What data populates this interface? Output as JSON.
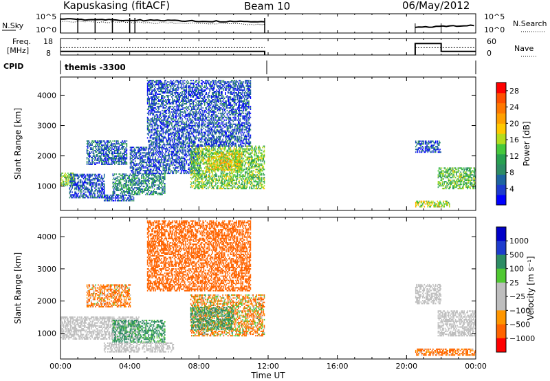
{
  "header": {
    "station": "Kapuskasing (fitACF)",
    "beam": "Beam 10",
    "date": "06/May/2012"
  },
  "panels": {
    "nsky": {
      "left_label": "N.Sky",
      "left_ticks": [
        "10^5",
        "10^0"
      ],
      "right_label": "N.Search",
      "right_ticks": [
        "10^5",
        "10^0"
      ]
    },
    "freq": {
      "left_label_1": "Freq.",
      "left_label_2": "[MHz]",
      "left_ticks": [
        "18",
        "8"
      ],
      "right_label": "Nave",
      "right_ticks": [
        "60",
        "0"
      ]
    },
    "cpid": {
      "label": "CPID",
      "program": "themis -3300"
    }
  },
  "colors": {
    "power_scale": [
      "#0000ff",
      "#1e3ccd",
      "#1e64a0",
      "#2d8c64",
      "#28a050",
      "#46c83c",
      "#b4dc1e",
      "#ffc800",
      "#ffa000",
      "#ff7800",
      "#ff5000",
      "#ff0000"
    ],
    "velocity_scale": [
      "#ff0000",
      "#ff6400",
      "#ff9600",
      "#bebebe",
      "#bebebe",
      "#50c832",
      "#2d8c64",
      "#1e3ccd",
      "#0000c8"
    ],
    "ground_scatter": "#bebebe"
  },
  "chart_data": [
    {
      "type": "heatmap",
      "name": "power",
      "ylabel": "Slant Range [km]",
      "yticks": [
        "1000",
        "2000",
        "3000",
        "4000"
      ],
      "ylim": [
        200,
        4600
      ],
      "xlim": [
        0,
        24
      ],
      "colorbar_label": "Power [dB]",
      "colorbar_ticks": [
        "4",
        "8",
        "12",
        "16",
        "20",
        "24",
        "28"
      ],
      "colorbar_range": [
        0,
        30
      ],
      "regions": [
        {
          "t": [
            0.0,
            0.8
          ],
          "r": [
            1000,
            1450
          ],
          "v": 14
        },
        {
          "t": [
            0.5,
            2.5
          ],
          "r": [
            600,
            1400
          ],
          "v": 5
        },
        {
          "t": [
            1.5,
            3.8
          ],
          "r": [
            1700,
            2500
          ],
          "v": 6
        },
        {
          "t": [
            2.5,
            4.2
          ],
          "r": [
            500,
            700
          ],
          "v": 5
        },
        {
          "t": [
            3.0,
            6.0
          ],
          "r": [
            700,
            1400
          ],
          "v": 9
        },
        {
          "t": [
            4.0,
            8.0
          ],
          "r": [
            1400,
            2300
          ],
          "v": 5
        },
        {
          "t": [
            7.5,
            11.8
          ],
          "r": [
            900,
            2300
          ],
          "v": 14
        },
        {
          "t": [
            8.5,
            10.5
          ],
          "r": [
            1500,
            2100
          ],
          "v": 18
        },
        {
          "t": [
            5.0,
            11.0
          ],
          "r": [
            2300,
            4500
          ],
          "v": 5
        },
        {
          "t": [
            20.5,
            22.0
          ],
          "r": [
            2100,
            2500
          ],
          "v": 5
        },
        {
          "t": [
            21.8,
            24.0
          ],
          "r": [
            900,
            1600
          ],
          "v": 13
        },
        {
          "t": [
            20.5,
            22.5
          ],
          "r": [
            300,
            500
          ],
          "v": 16
        }
      ]
    },
    {
      "type": "heatmap",
      "name": "velocity",
      "ylabel": "Slant Range [km]",
      "yticks": [
        "1000",
        "2000",
        "3000",
        "4000"
      ],
      "ylim": [
        200,
        4600
      ],
      "xlim": [
        0,
        24
      ],
      "xlabel": "Time UT",
      "xticks": [
        "00:00",
        "04:00",
        "08:00",
        "12:00",
        "16:00",
        "20:00",
        "00:00"
      ],
      "colorbar_label": "Velocity [m s⁻¹]",
      "colorbar_ticks": [
        "1000",
        "500",
        "100",
        "25",
        "−25",
        "−100",
        "−500",
        "−1000"
      ],
      "regions": [
        {
          "t": [
            0.0,
            4.5
          ],
          "r": [
            800,
            1500
          ],
          "v": 0,
          "gs": true
        },
        {
          "t": [
            1.5,
            4.0
          ],
          "r": [
            1800,
            2500
          ],
          "v": -150
        },
        {
          "t": [
            3.0,
            6.0
          ],
          "r": [
            700,
            1400
          ],
          "v": 200
        },
        {
          "t": [
            2.5,
            6.5
          ],
          "r": [
            400,
            700
          ],
          "v": 0,
          "gs": true
        },
        {
          "t": [
            7.5,
            11.8
          ],
          "r": [
            900,
            2200
          ],
          "v": -80
        },
        {
          "t": [
            7.5,
            10.0
          ],
          "r": [
            1100,
            1800
          ],
          "v": 150
        },
        {
          "t": [
            5.0,
            11.0
          ],
          "r": [
            2300,
            4500
          ],
          "v": -300
        },
        {
          "t": [
            20.5,
            22.0
          ],
          "r": [
            1900,
            2500
          ],
          "v": 0,
          "gs": true
        },
        {
          "t": [
            21.8,
            24.0
          ],
          "r": [
            900,
            1700
          ],
          "v": 0,
          "gs": true
        },
        {
          "t": [
            20.5,
            24.0
          ],
          "r": [
            300,
            500
          ],
          "v": -200
        }
      ]
    }
  ]
}
